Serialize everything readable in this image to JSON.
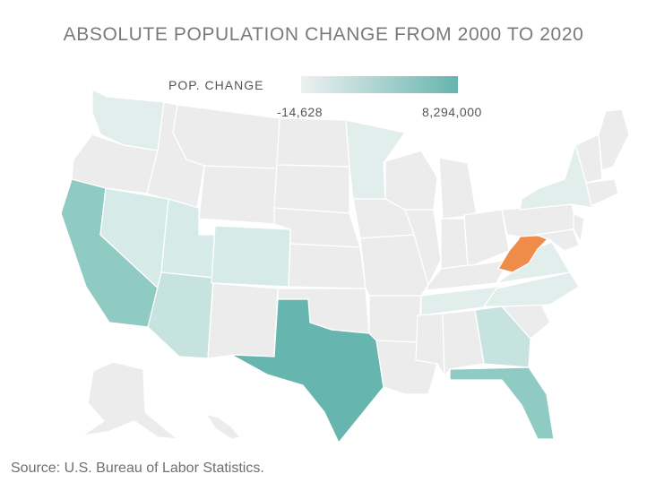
{
  "title": "ABSOLUTE POPULATION CHANGE FROM 2000 TO 2020",
  "legend": {
    "label": "POP. CHANGE",
    "min": "-14,628",
    "max": "8,294,000",
    "color_low": "#eef1f1",
    "color_high": "#66b5ae"
  },
  "source": "Source: U.S. Bureau of Labor Statistics.",
  "colors": {
    "base": "#ececec",
    "tint1": "#e2eeec",
    "tint2": "#d6ebe8",
    "tint3": "#c6e3df",
    "mid": "#a6d4ce",
    "strong": "#8fcac3",
    "max": "#66b5ae",
    "negative": "#f08c4a"
  },
  "map": {
    "type": "choropleth",
    "metric": "absolute population change 2000-2020",
    "highlighted_negative": "West Virginia",
    "highest": "Texas",
    "high": [
      "California",
      "Florida"
    ]
  }
}
